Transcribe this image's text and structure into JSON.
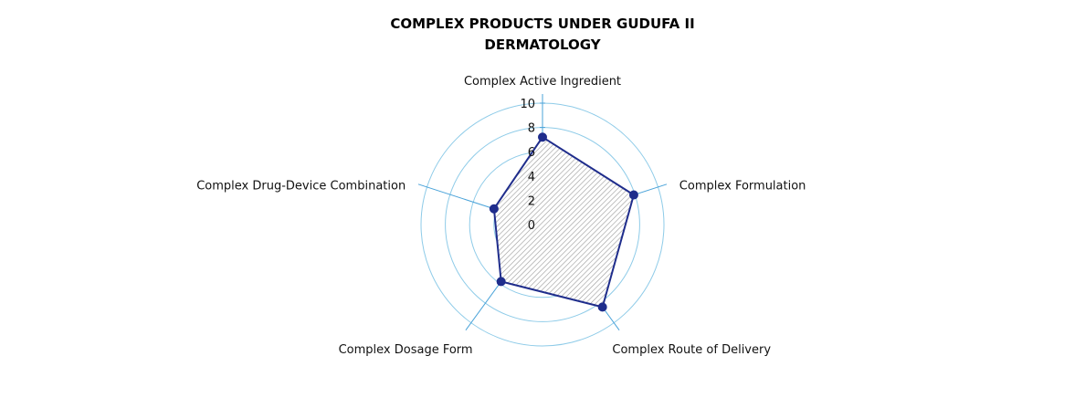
{
  "chart_data": {
    "type": "radar",
    "title_lines": [
      "COMPLEX PRODUCTS UNDER GUDUFA II",
      "DERMATOLOGY"
    ],
    "categories": [
      "Complex Active Ingredient",
      "Complex Formulation",
      "Complex Route of Delivery",
      "Complex Dosage Form",
      "Complex Drug-Device Combination"
    ],
    "series": [
      {
        "values": [
          7.2,
          7.9,
          8.4,
          5.8,
          4.2
        ]
      }
    ],
    "ticks": [
      0,
      2,
      4,
      6,
      8,
      10
    ],
    "rlim": [
      0,
      10
    ],
    "grid": true,
    "legend": "none",
    "colors": {
      "series_line": "#1f2d8c",
      "series_marker": "#1f2d8c",
      "grid": "#8ecbe8",
      "axis": "#4aa3d9",
      "fill_hatch": "#9a9a9a"
    }
  }
}
